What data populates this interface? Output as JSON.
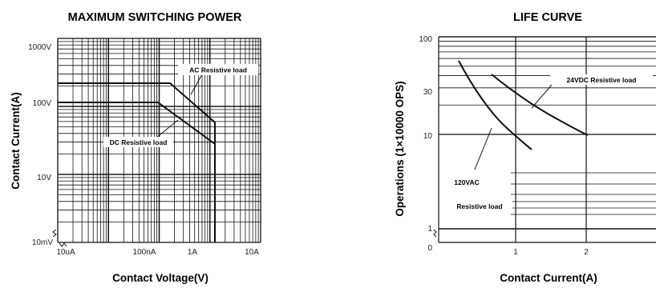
{
  "chart_data": [
    {
      "type": "line",
      "title": "MAXIMUM SWITCHING POWER",
      "xlabel": "Contact  Voltage(V)",
      "ylabel": "Contact Current(A)",
      "x_scale": "log",
      "y_scale": "log",
      "x_tick_labels": [
        "10uA",
        "100nA",
        "1A",
        "10A"
      ],
      "y_tick_labels": [
        "10mV",
        "10V",
        "100V",
        "1000V"
      ],
      "grid": true,
      "series": [
        {
          "name": "AC Resistive load",
          "x": [
            10,
            150,
            1000
          ],
          "y": [
            200,
            200,
            55
          ]
        },
        {
          "name": "DC Resistive load",
          "x": [
            10,
            100,
            1000
          ],
          "y": [
            100,
            100,
            27
          ]
        }
      ],
      "limits": [
        {
          "x": 1000,
          "y_range": [
            1,
            55
          ]
        }
      ]
    },
    {
      "type": "line",
      "title": "LIFE CURVE",
      "xlabel": "Contact Current(A)",
      "ylabel": "Operations (1×10000 OPS)",
      "x_tick_labels": [
        "0",
        "1",
        "2"
      ],
      "y_tick_labels": [
        "0",
        "1",
        "10",
        "30",
        "100"
      ],
      "xlim": [
        0,
        3
      ],
      "grid": true,
      "series": [
        {
          "name": "120VAC",
          "x": [
            0.3,
            0.5,
            0.7,
            0.9,
            1.1,
            1.3
          ],
          "y": [
            62,
            38,
            23,
            14,
            10,
            7.8
          ]
        },
        {
          "name": "24VDC  Resistive load",
          "x": [
            0.7,
            1.0,
            1.3,
            1.6,
            2.0
          ],
          "y": [
            45,
            28,
            19,
            14,
            10.5
          ]
        }
      ],
      "annotations": [
        "Resistive load"
      ]
    }
  ],
  "colors": {
    "line": "#111111",
    "grid": "#111111",
    "background": "#ffffff"
  }
}
